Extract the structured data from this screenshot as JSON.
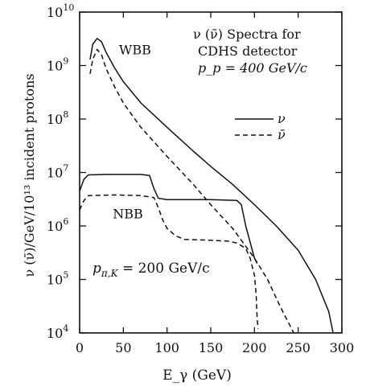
{
  "chart_data": {
    "type": "line",
    "title_lines": [
      "ν (ν̄) Spectra for",
      "CDHS detector",
      "p_p = 400 GeV/c"
    ],
    "xlabel": "E_γ (GeV)",
    "ylabel": "ν (ν̄)/GeV/10¹³ incident protons",
    "xlim": [
      0,
      300
    ],
    "ylim": [
      10000,
      10000000000
    ],
    "yscale": "log",
    "x_ticks": [
      0,
      50,
      100,
      150,
      200,
      250,
      300
    ],
    "y_ticks": [
      {
        "value": 10000,
        "base": "10",
        "exp": "4"
      },
      {
        "value": 100000,
        "base": "10",
        "exp": "5"
      },
      {
        "value": 1000000,
        "base": "10",
        "exp": "6"
      },
      {
        "value": 10000000,
        "base": "10",
        "exp": "7"
      },
      {
        "value": 100000000,
        "base": "10",
        "exp": "8"
      },
      {
        "value": 1000000000,
        "base": "10",
        "exp": "9"
      },
      {
        "value": 10000000000,
        "base": "10",
        "exp": "10"
      }
    ],
    "legend": [
      {
        "label": "ν",
        "style": "solid"
      },
      {
        "label": "ν̄",
        "style": "dashed"
      }
    ],
    "legend_position": "upper-right",
    "annotations": [
      {
        "text": "WBB",
        "x": 45,
        "y": 2000000000
      },
      {
        "text": "NBB",
        "x": 38,
        "y": 1700000
      }
    ],
    "bottom_annotation": {
      "base": "p",
      "sub": "π,K",
      "rest": " = 200 GeV/c"
    },
    "series": [
      {
        "group": "WBB",
        "style": "solid",
        "points": [
          [
            12,
            1300000000
          ],
          [
            15,
            2500000000
          ],
          [
            20,
            3200000000
          ],
          [
            25,
            2800000000
          ],
          [
            30,
            1800000000
          ],
          [
            40,
            900000000
          ],
          [
            50,
            500000000
          ],
          [
            70,
            200000000
          ],
          [
            100,
            70000000
          ],
          [
            130,
            25000000
          ],
          [
            150,
            13000000
          ],
          [
            175,
            6000000
          ],
          [
            200,
            2500000
          ],
          [
            225,
            1000000
          ],
          [
            250,
            350000
          ],
          [
            270,
            100000
          ],
          [
            285,
            25000
          ],
          [
            290,
            10000
          ]
        ]
      },
      {
        "group": "WBB",
        "style": "dashed",
        "points": [
          [
            12,
            700000000
          ],
          [
            15,
            1300000000
          ],
          [
            20,
            2000000000
          ],
          [
            25,
            1600000000
          ],
          [
            30,
            900000000
          ],
          [
            40,
            400000000
          ],
          [
            50,
            200000000
          ],
          [
            70,
            70000000
          ],
          [
            100,
            20000000
          ],
          [
            130,
            6000000
          ],
          [
            150,
            2500000
          ],
          [
            175,
            900000
          ],
          [
            200,
            250000
          ],
          [
            215,
            100000
          ],
          [
            230,
            30000
          ],
          [
            245,
            10000
          ]
        ]
      },
      {
        "group": "NBB",
        "style": "solid",
        "points": [
          [
            0,
            4500000
          ],
          [
            5,
            7500000
          ],
          [
            10,
            9000000
          ],
          [
            30,
            9200000
          ],
          [
            70,
            9200000
          ],
          [
            80,
            8800000
          ],
          [
            85,
            5000000
          ],
          [
            90,
            3300000
          ],
          [
            100,
            3100000
          ],
          [
            150,
            3100000
          ],
          [
            180,
            3000000
          ],
          [
            185,
            2500000
          ],
          [
            190,
            1000000
          ],
          [
            195,
            500000
          ],
          [
            200,
            250000
          ],
          [
            203,
            200000
          ]
        ]
      },
      {
        "group": "NBB",
        "style": "dashed",
        "points": [
          [
            0,
            2000000
          ],
          [
            5,
            3000000
          ],
          [
            10,
            3700000
          ],
          [
            40,
            3800000
          ],
          [
            70,
            3700000
          ],
          [
            85,
            3400000
          ],
          [
            90,
            2200000
          ],
          [
            95,
            1300000
          ],
          [
            100,
            900000
          ],
          [
            110,
            650000
          ],
          [
            120,
            560000
          ],
          [
            150,
            540000
          ],
          [
            170,
            520000
          ],
          [
            180,
            480000
          ],
          [
            190,
            380000
          ],
          [
            195,
            250000
          ],
          [
            200,
            120000
          ],
          [
            202,
            50000
          ],
          [
            203,
            20000
          ],
          [
            204,
            12000
          ]
        ]
      }
    ]
  }
}
